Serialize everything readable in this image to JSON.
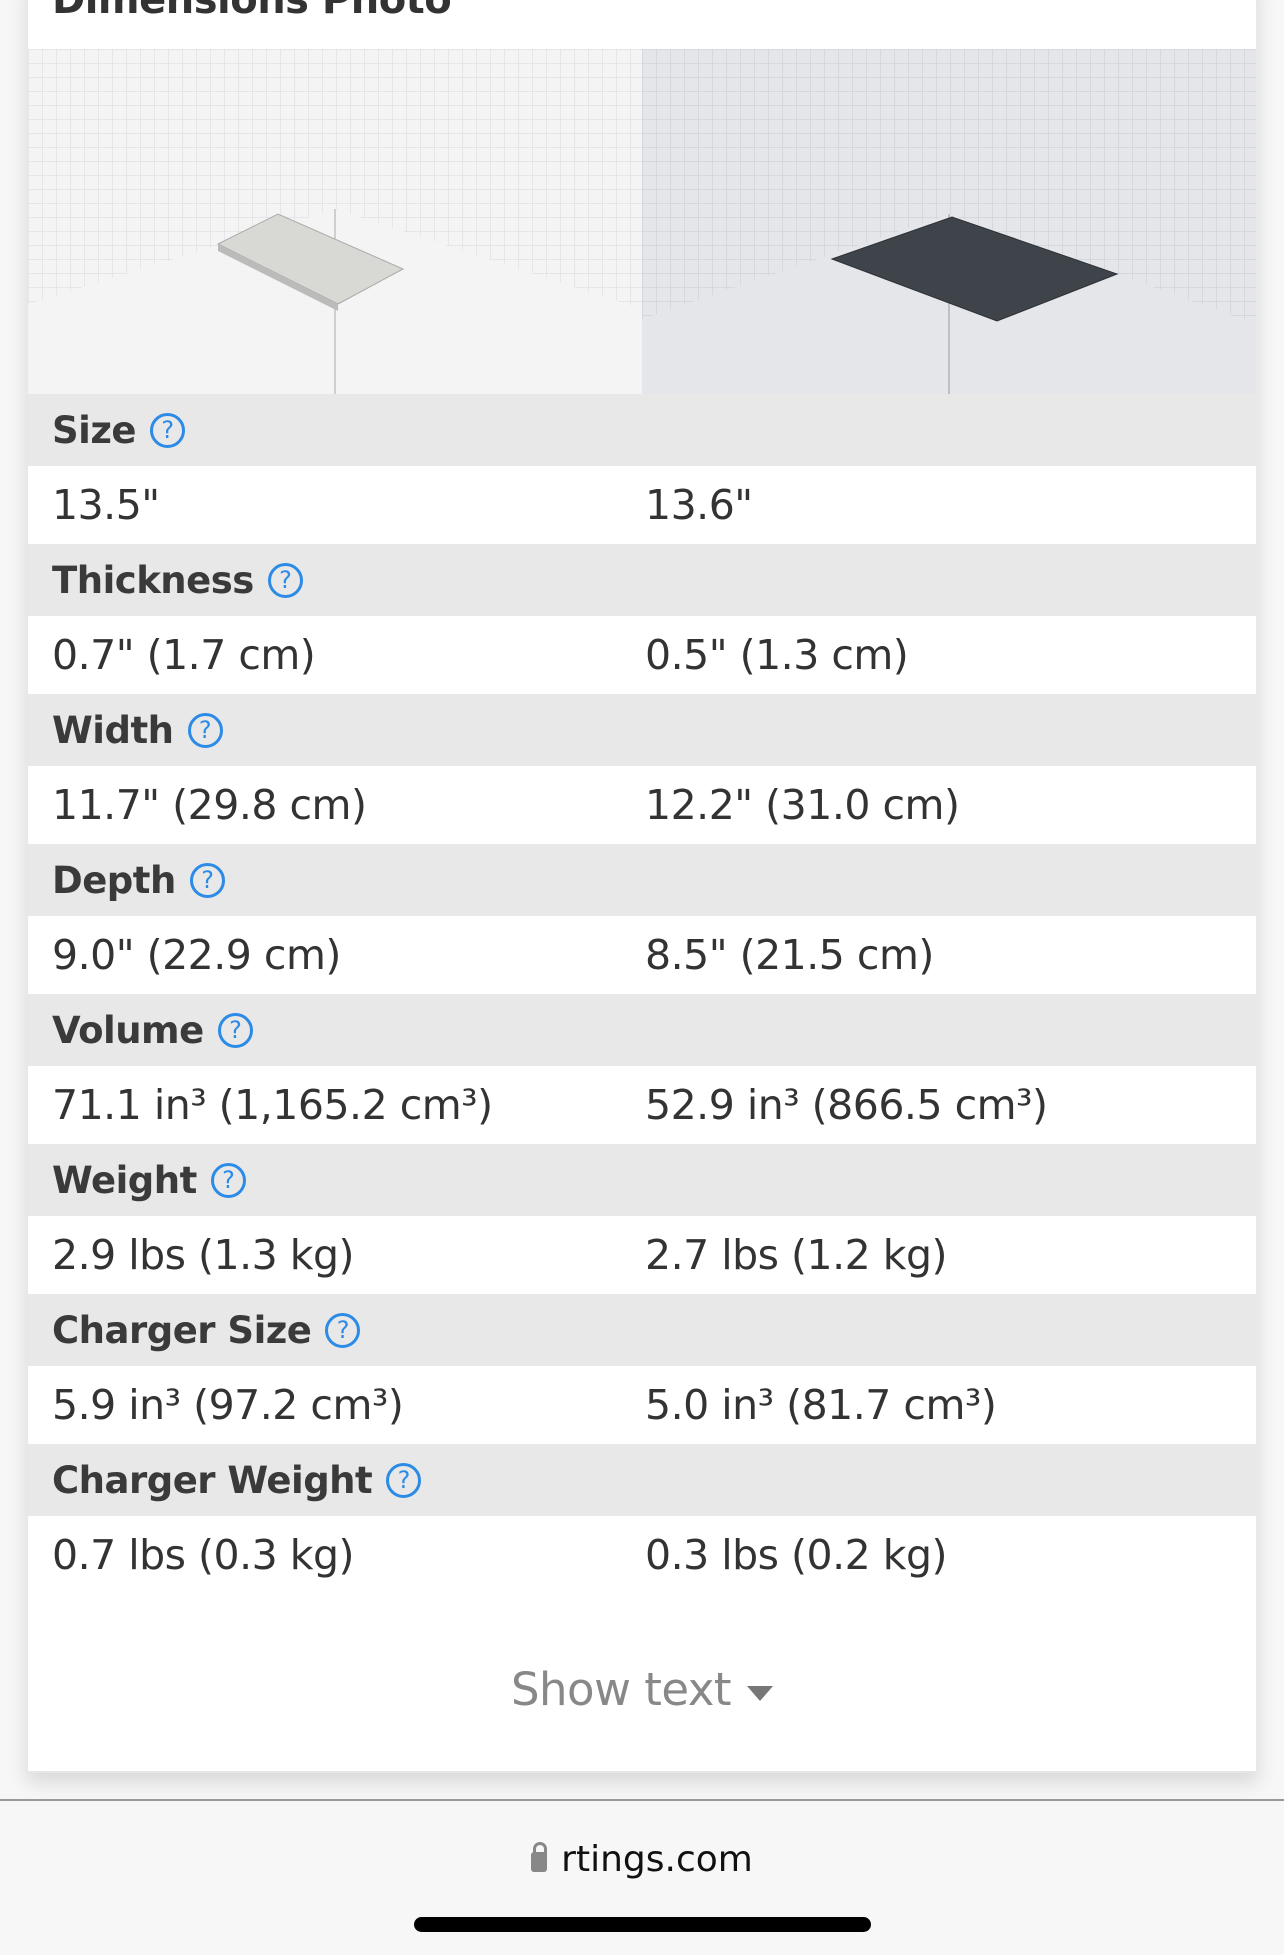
{
  "section": {
    "title": "Dimensions Photo"
  },
  "photos": [
    {
      "alt": "silver laptop dimensions photo",
      "color": "#d9d9d6"
    },
    {
      "alt": "dark laptop dimensions photo",
      "color": "#3f444b"
    }
  ],
  "rows": [
    {
      "label": "Size",
      "left": "13.5\"",
      "right": "13.6\""
    },
    {
      "label": "Thickness",
      "left": "0.7\" (1.7 cm)",
      "right": "0.5\" (1.3 cm)"
    },
    {
      "label": "Width",
      "left": "11.7\" (29.8 cm)",
      "right": "12.2\" (31.0 cm)"
    },
    {
      "label": "Depth",
      "left": "9.0\" (22.9 cm)",
      "right": "8.5\" (21.5 cm)"
    },
    {
      "label": "Volume",
      "left": "71.1 in³ (1,165.2 cm³)",
      "right": "52.9 in³ (866.5 cm³)"
    },
    {
      "label": "Weight",
      "left": "2.9 lbs (1.3 kg)",
      "right": "2.7 lbs (1.2 kg)"
    },
    {
      "label": "Charger Size",
      "left": "5.9 in³ (97.2 cm³)",
      "right": "5.0 in³ (81.7 cm³)"
    },
    {
      "label": "Charger Weight",
      "left": "0.7 lbs (0.3 kg)",
      "right": "0.3 lbs (0.2 kg)"
    }
  ],
  "help_icon": "?",
  "show_text": "Show text",
  "browser": {
    "url": "rtings.com"
  },
  "colors": {
    "accent": "#2b8be6",
    "header_bg": "#e8e8e8"
  }
}
